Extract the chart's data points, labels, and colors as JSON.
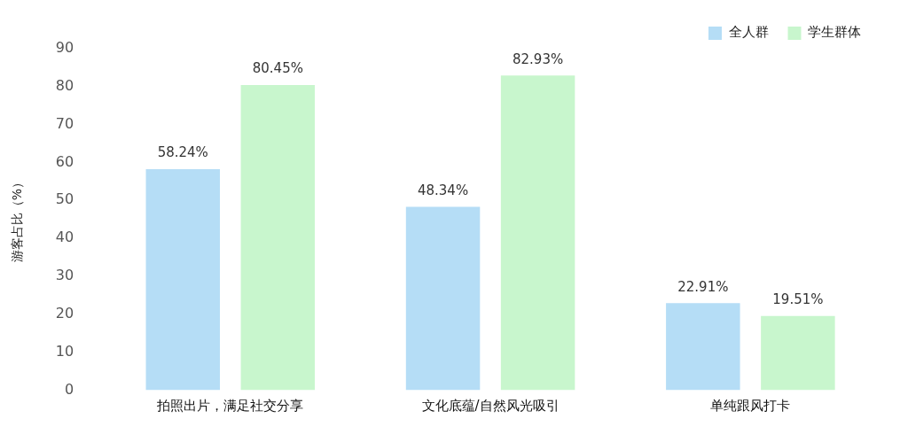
{
  "chart_data": {
    "type": "bar",
    "ylabel": "游客占比（%）",
    "categories": [
      "拍照出片，满足社交分享",
      "文化底蕴/自然风光吸引",
      "单纯跟风打卡"
    ],
    "series": [
      {
        "name": "全人群",
        "color": "#b5ddf6",
        "values": [
          58.24,
          48.34,
          22.91
        ],
        "value_labels": [
          "58.24%",
          "48.34%",
          "22.91%"
        ]
      },
      {
        "name": "学生群体",
        "color": "#c8f6cd",
        "values": [
          80.45,
          82.93,
          19.51
        ],
        "value_labels": [
          "80.45%",
          "82.93%",
          "19.51%"
        ]
      }
    ],
    "ylim": [
      0,
      90
    ],
    "yticks": [
      0,
      10,
      20,
      30,
      40,
      50,
      60,
      70,
      80,
      90
    ],
    "grid": false,
    "legend": "top right"
  }
}
